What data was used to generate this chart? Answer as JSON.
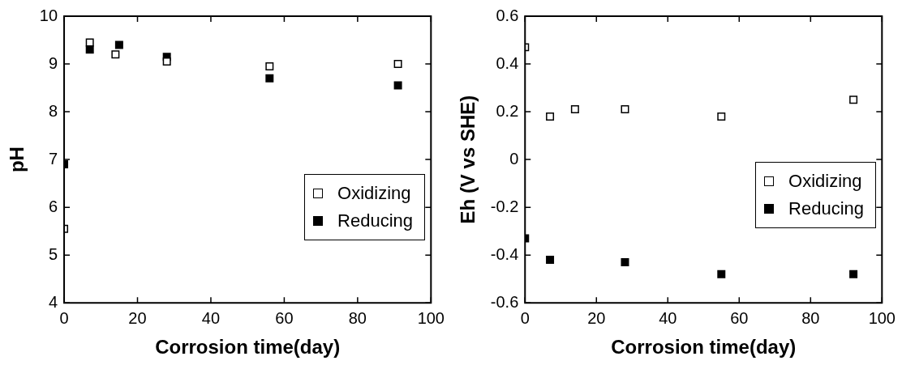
{
  "chart_data": [
    {
      "type": "scatter",
      "xlabel": "Corrosion time(day)",
      "ylabel": "pH",
      "xlim": [
        0,
        100
      ],
      "xticks": [
        0,
        20,
        40,
        60,
        80,
        100
      ],
      "ylim": [
        4,
        10
      ],
      "yticks": [
        4,
        5,
        6,
        7,
        8,
        9,
        10
      ],
      "grid": false,
      "legend": "bottom right",
      "marker": "square",
      "series": [
        {
          "name": "Oxidizing",
          "color": "#ffffff",
          "x": [
            0,
            7,
            14,
            28,
            56,
            91
          ],
          "values": [
            5.55,
            9.45,
            9.2,
            9.05,
            8.95,
            9.0
          ]
        },
        {
          "name": "Reducing",
          "color": "#000000",
          "x": [
            0,
            7,
            15,
            28,
            56,
            91
          ],
          "values": [
            6.9,
            9.3,
            9.4,
            9.15,
            8.7,
            8.55
          ]
        }
      ]
    },
    {
      "type": "scatter",
      "xlabel": "Corrosion time(day)",
      "ylabel": "Eh (V vs SHE)",
      "xlim": [
        0,
        100
      ],
      "xticks": [
        0,
        20,
        40,
        60,
        80,
        100
      ],
      "ylim": [
        -0.6,
        0.6
      ],
      "yticks": [
        -0.6,
        -0.4,
        -0.2,
        0,
        0.2,
        0.4,
        0.6
      ],
      "grid": false,
      "legend": "right",
      "marker": "square",
      "series": [
        {
          "name": "Oxidizing",
          "color": "#ffffff",
          "x": [
            0,
            7,
            14,
            28,
            55,
            92
          ],
          "values": [
            0.47,
            0.18,
            0.21,
            0.21,
            0.18,
            0.25
          ]
        },
        {
          "name": "Reducing",
          "color": "#000000",
          "x": [
            0,
            7,
            28,
            55,
            92
          ],
          "values": [
            -0.33,
            -0.42,
            -0.43,
            -0.48,
            -0.48
          ]
        }
      ]
    }
  ]
}
